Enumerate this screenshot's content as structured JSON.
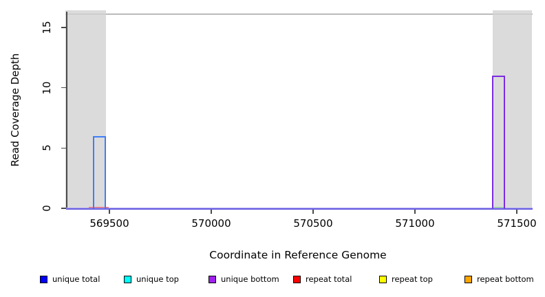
{
  "axes": {
    "x_label": "Coordinate in Reference Genome",
    "y_label": "Read Coverage Depth"
  },
  "legend": {
    "items": [
      {
        "label": "unique total",
        "color": "#0000FF"
      },
      {
        "label": "unique top",
        "color": "#00FFFF"
      },
      {
        "label": "unique bottom",
        "color": "#A020F0"
      },
      {
        "label": "repeat total",
        "color": "#FF0000"
      },
      {
        "label": "repeat top",
        "color": "#FFFF00"
      },
      {
        "label": "repeat bottom",
        "color": "#FFA500"
      }
    ]
  },
  "chart_data": {
    "type": "bar",
    "title": "",
    "xlabel": "Coordinate in Reference Genome",
    "ylabel": "Read Coverage Depth",
    "xlim": [
      569285,
      571575
    ],
    "ylim": [
      0,
      16
    ],
    "x_ticks": [
      569500,
      570000,
      570500,
      571000,
      571500
    ],
    "y_ticks": [
      0,
      5,
      10,
      15
    ],
    "grid": false,
    "legend_position": "bottom",
    "top_frame_line_value": 16,
    "shaded_regions": [
      {
        "x0": 569285,
        "x1": 569483,
        "color": "#DBDBDB"
      },
      {
        "x0": 571382,
        "x1": 571575,
        "color": "#DBDBDB"
      }
    ],
    "bars": [
      {
        "series": "unique total",
        "x0": 569420,
        "x1": 569483,
        "height": 6,
        "stroke": "#3F7DF6"
      },
      {
        "series": "unique bottom",
        "x0": 571380,
        "x1": 571443,
        "height": 11,
        "stroke": "#7B2BE0"
      }
    ],
    "baseline": {
      "value": 0,
      "colors": [
        "#AFA3F0",
        "#6A60E0"
      ]
    },
    "baseline_segments": [
      {
        "x0": 569400,
        "x1": 569497,
        "value": 0,
        "color": "#F25C5C"
      },
      {
        "x0": 571380,
        "x1": 571443,
        "value": 0,
        "color": "#8FD98A"
      }
    ],
    "series": [
      {
        "name": "unique total",
        "summary": "0 everywhere except bar 569420-569483 at depth 6"
      },
      {
        "name": "unique top",
        "summary": "0 everywhere"
      },
      {
        "name": "unique bottom",
        "summary": "0 everywhere except bar 571380-571443 at depth 11"
      },
      {
        "name": "repeat total",
        "summary": "0 everywhere"
      },
      {
        "name": "repeat top",
        "summary": "0 everywhere"
      },
      {
        "name": "repeat bottom",
        "summary": "0 everywhere"
      }
    ]
  }
}
